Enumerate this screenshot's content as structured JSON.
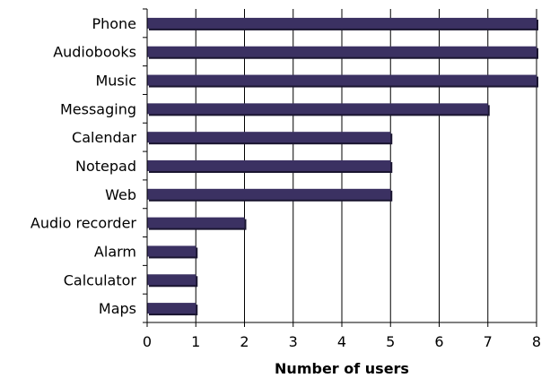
{
  "chart_data": {
    "type": "bar",
    "orientation": "horizontal",
    "categories": [
      "Phone",
      "Audiobooks",
      "Music",
      "Messaging",
      "Calendar",
      "Notepad",
      "Web",
      "Audio recorder",
      "Alarm",
      "Calculator",
      "Maps"
    ],
    "values": [
      8,
      8,
      8,
      7,
      5,
      5,
      5,
      2,
      1,
      1,
      1
    ],
    "xlabel": "Number of users",
    "xlim": [
      0,
      8
    ],
    "xticks": [
      0,
      1,
      2,
      3,
      4,
      5,
      6,
      7,
      8
    ],
    "grid": "vertical",
    "bar_color": "#3b3162",
    "bar_shadow_color": "#1a1530"
  }
}
